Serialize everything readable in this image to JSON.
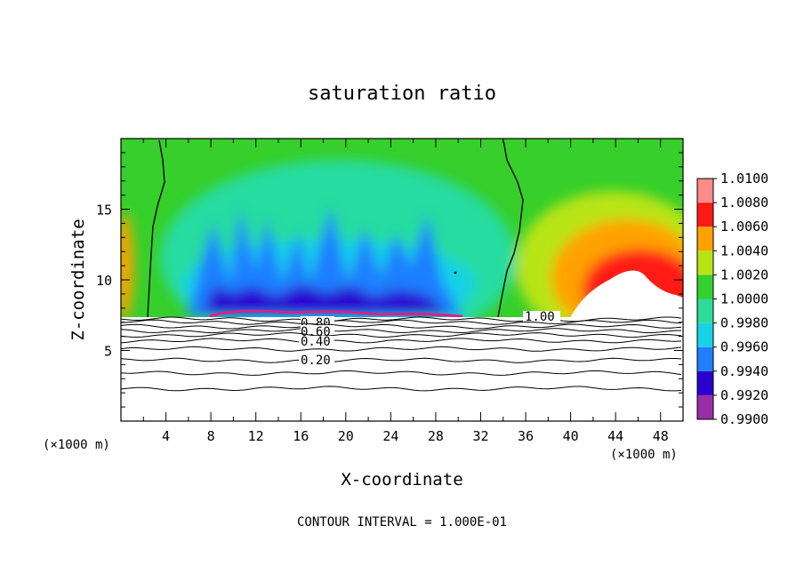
{
  "chart_data": {
    "type": "heatmap",
    "title": "saturation ratio",
    "xlabel": "X-coordinate",
    "ylabel": "Z-coordinate",
    "x_unit_left": "(×1000 m)",
    "x_unit_right": "(×1000 m)",
    "footer": "CONTOUR INTERVAL = 1.000E-01",
    "xlim": [
      0,
      50
    ],
    "ylim": [
      0,
      20
    ],
    "xticks": [
      4,
      8,
      12,
      16,
      20,
      24,
      28,
      32,
      36,
      40,
      44,
      48
    ],
    "yticks": [
      5,
      10,
      15
    ],
    "colorbar": {
      "levels": [
        "0.9900",
        "0.9920",
        "0.9940",
        "0.9960",
        "0.9980",
        "1.0000",
        "1.0020",
        "1.0040",
        "1.0060",
        "1.0080",
        "1.0100"
      ],
      "colors": [
        "#9a2ea8",
        "#2a00d0",
        "#1f7fff",
        "#19d2e6",
        "#2ddc9a",
        "#33d030",
        "#b8e416",
        "#ffa200",
        "#ff1a14",
        "#ff8a8a"
      ]
    },
    "contour_levels": [
      0.1,
      0.2,
      0.3,
      0.4,
      0.5,
      0.6,
      0.7,
      0.8,
      0.9,
      1.0
    ],
    "contour_labels": [
      "0.80",
      "0.60",
      "0.40",
      "0.20",
      "1.00"
    ],
    "cloud_base_z": 7.4
  }
}
